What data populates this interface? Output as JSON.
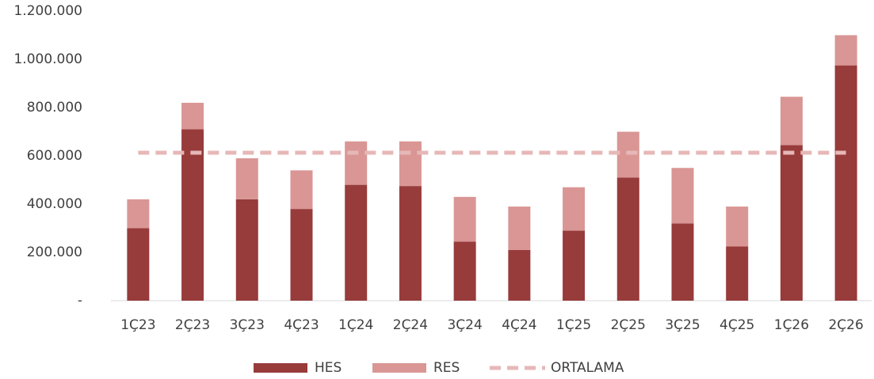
{
  "chart_data": {
    "type": "bar",
    "stacked": true,
    "categories": [
      "1Ç23",
      "2Ç23",
      "3Ç23",
      "4Ç23",
      "1Ç24",
      "2Ç24",
      "3Ç24",
      "4Ç24",
      "1Ç25",
      "2Ç25",
      "3Ç25",
      "4Ç25",
      "1Ç26",
      "2Ç26"
    ],
    "series": [
      {
        "name": "HES",
        "color": "#983b3b",
        "values": [
          300000,
          710000,
          420000,
          380000,
          480000,
          475000,
          245000,
          210000,
          290000,
          510000,
          320000,
          225000,
          645000,
          975000
        ]
      },
      {
        "name": "RES",
        "color": "#d99694",
        "values": [
          120000,
          110000,
          170000,
          160000,
          180000,
          185000,
          185000,
          180000,
          180000,
          190000,
          230000,
          165000,
          200000,
          125000
        ]
      },
      {
        "name": "ORTALAMA",
        "type": "line",
        "dashed": true,
        "color": "#e6b8b7",
        "values": [
          613000,
          613000,
          613000,
          613000,
          613000,
          613000,
          613000,
          613000,
          613000,
          613000,
          613000,
          613000,
          613000,
          613000
        ]
      }
    ],
    "ylim": [
      0,
      1200000
    ],
    "yticks": [
      {
        "value": 0,
        "label": "-"
      },
      {
        "value": 200000,
        "label": "200.000"
      },
      {
        "value": 400000,
        "label": "400.000"
      },
      {
        "value": 600000,
        "label": "600.000"
      },
      {
        "value": 800000,
        "label": "800.000"
      },
      {
        "value": 1000000,
        "label": "1.000.000"
      },
      {
        "value": 1200000,
        "label": "1.200.000"
      }
    ],
    "legend": "bottom"
  }
}
